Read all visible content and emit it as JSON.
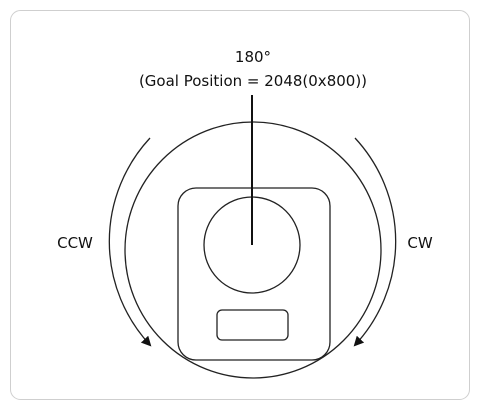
{
  "labels": {
    "angle": "180°",
    "goal": "(Goal Position = 2048(0x800))",
    "ccw": "CCW",
    "cw": "CW"
  }
}
